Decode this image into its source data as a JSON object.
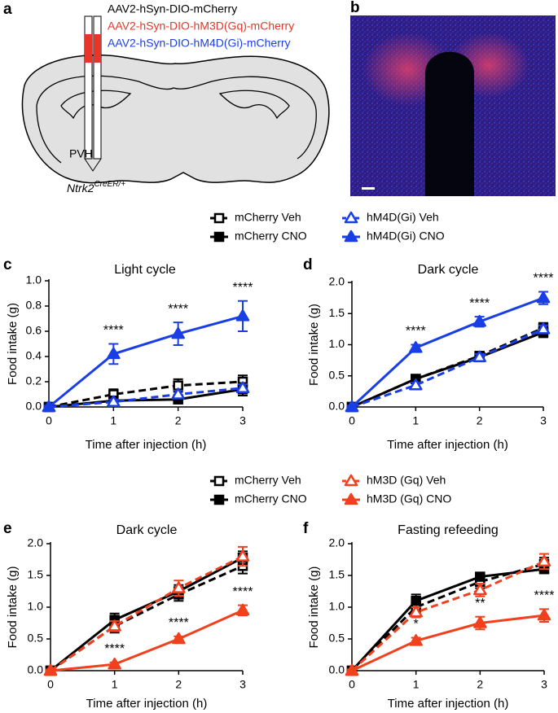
{
  "panel_a": {
    "label": "a",
    "constructs": [
      {
        "text": "AAV2-hSyn-DIO-mCherry",
        "color": "#000000"
      },
      {
        "text": "AAV2-hSyn-DIO-hM3D(Gq)-mCherry",
        "color": "#e8352a"
      },
      {
        "text": "AAV2-hSyn-DIO-hM4D(Gi)-mCherry",
        "color": "#1a3ee6"
      }
    ],
    "region": "PVH",
    "genotype": "Ntrk2",
    "genotype_superscript": "CreER/+"
  },
  "panel_b": {
    "label": "b"
  },
  "chart_data": [
    {
      "type": "line",
      "label": "c",
      "title": "Light cycle",
      "x_label": "Time after injection (h)",
      "y_label": "Food intake (g)",
      "x": [
        0,
        1,
        2,
        3
      ],
      "xlim": [
        0,
        3
      ],
      "xticks": [
        0,
        1,
        2,
        3
      ],
      "ylim": [
        0,
        1
      ],
      "yticks": [
        {
          "value": 0,
          "label": "0.0"
        },
        0.2,
        0.4,
        0.6,
        0.8,
        {
          "value": 1,
          "label": "1.0"
        }
      ],
      "legend": "top",
      "series": [
        {
          "name": "mCherry Veh",
          "color": "#000000",
          "marker": "square",
          "filled": false,
          "dashed": true,
          "values": [
            0,
            0.1,
            0.17,
            0.2
          ],
          "errors": [
            0.01,
            0.04,
            0.05,
            0.05
          ]
        },
        {
          "name": "mCherry CNO",
          "color": "#000000",
          "marker": "square",
          "filled": true,
          "dashed": false,
          "values": [
            0,
            0.05,
            0.06,
            0.14
          ],
          "errors": [
            0.01,
            0.03,
            0.03,
            0.05
          ]
        },
        {
          "name": "hM4D(Gi) Veh",
          "color": "#1a3ee6",
          "marker": "triangle",
          "filled": false,
          "dashed": true,
          "values": [
            0,
            0.04,
            0.1,
            0.15
          ],
          "errors": [
            0.01,
            0.02,
            0.03,
            0.03
          ]
        },
        {
          "name": "hM4D(Gi) CNO",
          "color": "#1a3ee6",
          "marker": "triangle",
          "filled": true,
          "dashed": false,
          "values": [
            0,
            0.42,
            0.58,
            0.72
          ],
          "errors": [
            0.01,
            0.08,
            0.09,
            0.12
          ]
        }
      ],
      "annotations": [
        {
          "x": 1,
          "text": "****"
        },
        {
          "x": 2,
          "text": "****"
        },
        {
          "x": 3,
          "text": "****"
        }
      ]
    },
    {
      "type": "line",
      "label": "d",
      "title": "Dark cycle",
      "x_label": "Time after injection (h)",
      "y_label": "Food intake (g)",
      "x": [
        0,
        1,
        2,
        3
      ],
      "xlim": [
        0,
        3
      ],
      "xticks": [
        0,
        1,
        2,
        3
      ],
      "ylim": [
        0,
        2
      ],
      "yticks": [
        {
          "value": 0,
          "label": "0.0"
        },
        0.5,
        {
          "value": 1,
          "label": "1.0"
        },
        1.5,
        {
          "value": 2,
          "label": "2.0"
        }
      ],
      "series": [
        {
          "color": "#000000",
          "marker": "square",
          "filled": false,
          "dashed": true,
          "values": [
            0,
            0.45,
            0.82,
            1.27
          ],
          "errors": [
            0.02,
            0.05,
            0.06,
            0.08
          ]
        },
        {
          "color": "#000000",
          "marker": "square",
          "filled": true,
          "dashed": false,
          "values": [
            0,
            0.45,
            0.8,
            1.2
          ],
          "errors": [
            0.02,
            0.05,
            0.06,
            0.08
          ]
        },
        {
          "color": "#1a3ee6",
          "marker": "triangle",
          "filled": false,
          "dashed": true,
          "values": [
            0,
            0.35,
            0.8,
            1.25
          ],
          "errors": [
            0.02,
            0.04,
            0.05,
            0.06
          ]
        },
        {
          "color": "#1a3ee6",
          "marker": "triangle",
          "filled": true,
          "dashed": false,
          "values": [
            0,
            0.95,
            1.37,
            1.75
          ],
          "errors": [
            0.02,
            0.05,
            0.08,
            0.1
          ]
        }
      ],
      "annotations": [
        {
          "x": 1,
          "text": "****"
        },
        {
          "x": 2,
          "text": "****"
        },
        {
          "x": 3,
          "text": "****"
        }
      ]
    },
    {
      "type": "line",
      "label": "e",
      "title": "Dark cycle",
      "x_label": "Time after injection (h)",
      "y_label": "Food intake (g)",
      "x": [
        0,
        1,
        2,
        3
      ],
      "xlim": [
        0,
        3
      ],
      "xticks": [
        0,
        1,
        2,
        3
      ],
      "ylim": [
        0,
        2
      ],
      "yticks": [
        {
          "value": 0,
          "label": "0.0"
        },
        0.5,
        {
          "value": 1,
          "label": "1.0"
        },
        1.5,
        {
          "value": 2,
          "label": "2.0"
        }
      ],
      "legend": "top",
      "series": [
        {
          "name": "mCherry Veh",
          "color": "#000000",
          "marker": "square",
          "filled": false,
          "dashed": true,
          "values": [
            0,
            0.7,
            1.2,
            1.65
          ],
          "errors": [
            0.02,
            0.1,
            0.1,
            0.12
          ]
        },
        {
          "name": "mCherry CNO",
          "color": "#000000",
          "marker": "square",
          "filled": true,
          "dashed": false,
          "values": [
            0,
            0.8,
            1.25,
            1.78
          ],
          "errors": [
            0.02,
            0.1,
            0.1,
            0.1
          ]
        },
        {
          "name": "hM3D (Gq) Veh",
          "color": "#f0401e",
          "marker": "triangle",
          "filled": false,
          "dashed": true,
          "values": [
            0,
            0.7,
            1.3,
            1.8
          ],
          "errors": [
            0.02,
            0.08,
            0.12,
            0.15
          ]
        },
        {
          "name": "hM3D (Gq) CNO",
          "color": "#f0401e",
          "marker": "triangle",
          "filled": true,
          "dashed": false,
          "values": [
            0,
            0.1,
            0.5,
            0.95
          ],
          "errors": [
            0.01,
            0.03,
            0.04,
            0.08
          ]
        }
      ],
      "annotations": [
        {
          "x": 1,
          "text": "****"
        },
        {
          "x": 2,
          "text": "****"
        },
        {
          "x": 3,
          "text": "****"
        }
      ]
    },
    {
      "type": "line",
      "label": "f",
      "title": "Fasting refeeding",
      "x_label": "Time after injection (h)",
      "y_label": "Food intake (g)",
      "x": [
        0,
        1,
        2,
        3
      ],
      "xlim": [
        0,
        3
      ],
      "xticks": [
        0,
        1,
        2,
        3
      ],
      "ylim": [
        0,
        2
      ],
      "yticks": [
        {
          "value": 0,
          "label": "0.0"
        },
        0.5,
        {
          "value": 1,
          "label": "1.0"
        },
        1.5,
        {
          "value": 2,
          "label": "2.0"
        }
      ],
      "series": [
        {
          "color": "#000000",
          "marker": "square",
          "filled": false,
          "dashed": true,
          "values": [
            0,
            1.0,
            1.4,
            1.68
          ],
          "errors": [
            0.02,
            0.08,
            0.1,
            0.1
          ]
        },
        {
          "color": "#000000",
          "marker": "square",
          "filled": true,
          "dashed": false,
          "values": [
            0,
            1.1,
            1.48,
            1.6
          ],
          "errors": [
            0.02,
            0.1,
            0.05,
            0.06
          ]
        },
        {
          "color": "#f0401e",
          "marker": "triangle",
          "filled": false,
          "dashed": true,
          "values": [
            0,
            0.92,
            1.27,
            1.72
          ],
          "errors": [
            0.02,
            0.08,
            0.1,
            0.12
          ]
        },
        {
          "color": "#f0401e",
          "marker": "triangle",
          "filled": true,
          "dashed": false,
          "values": [
            0,
            0.47,
            0.75,
            0.87
          ],
          "errors": [
            0.02,
            0.05,
            0.1,
            0.1
          ]
        }
      ],
      "annotations": [
        {
          "x": 1,
          "text": "*"
        },
        {
          "x": 2,
          "text": "**"
        },
        {
          "x": 3,
          "text": "****"
        }
      ]
    }
  ]
}
